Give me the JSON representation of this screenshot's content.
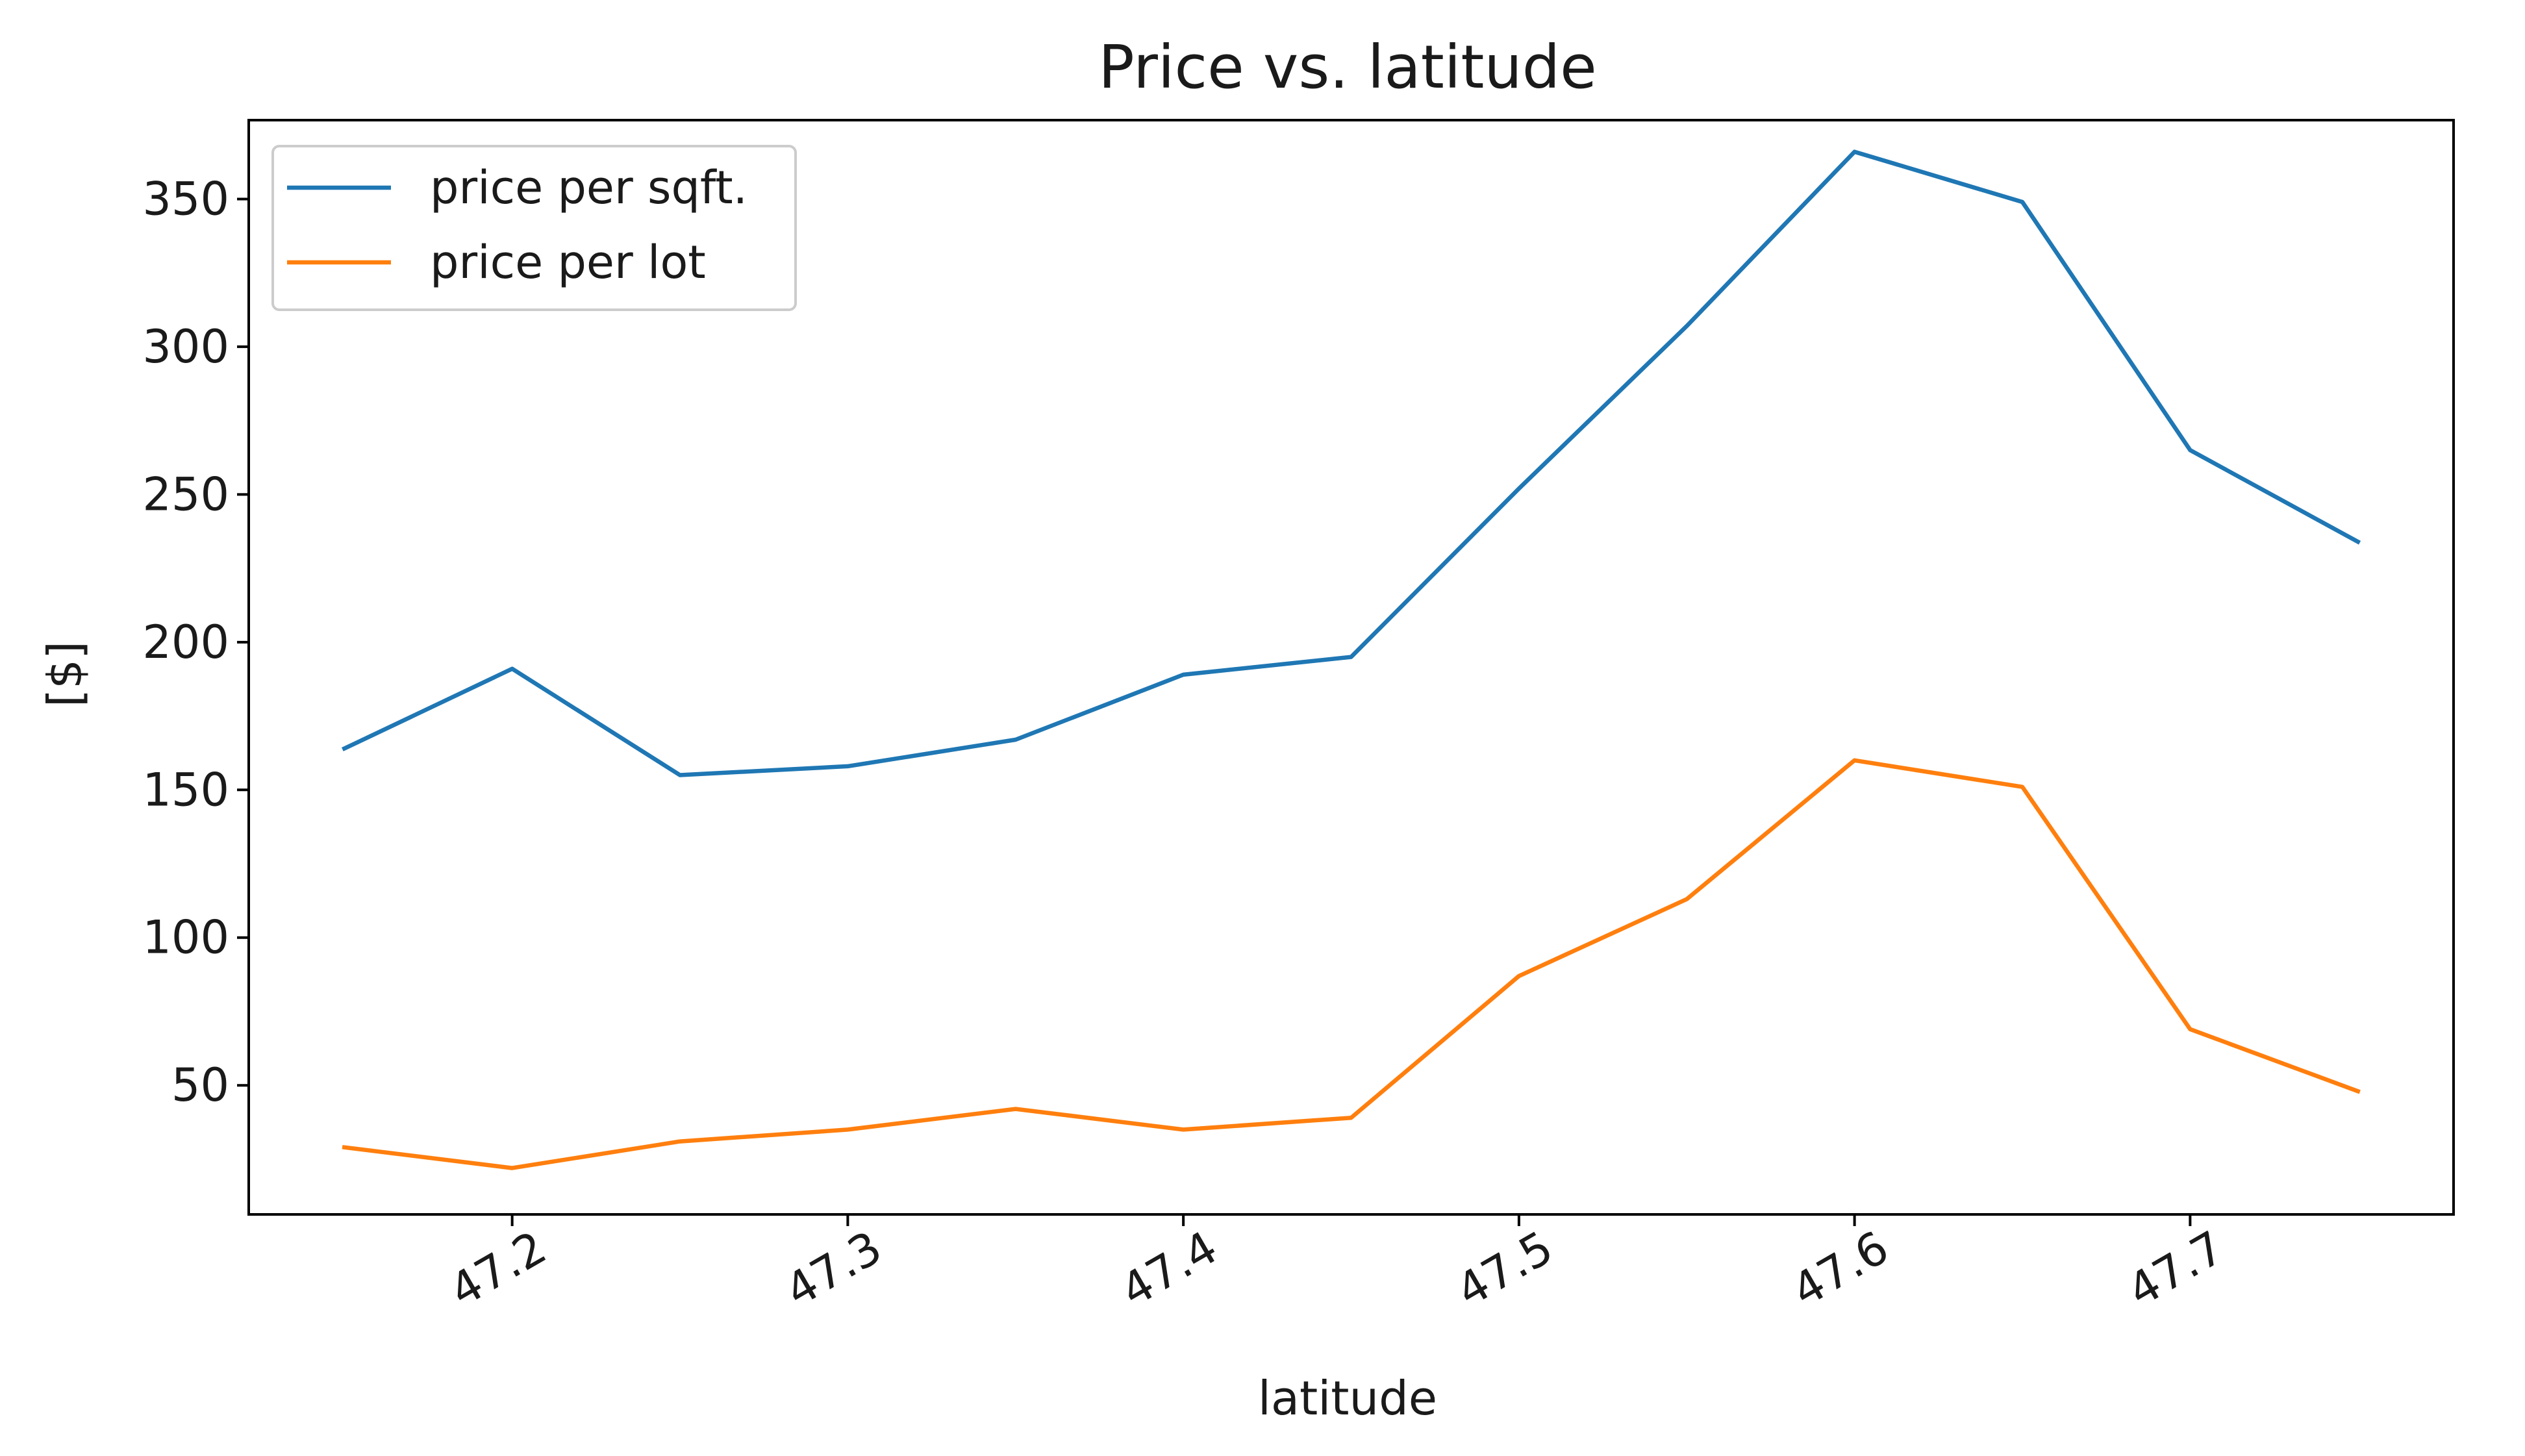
{
  "chart_data": {
    "type": "line",
    "title": "Price vs. latitude",
    "xlabel": "latitude",
    "ylabel": "[$]",
    "x": [
      47.15,
      47.2,
      47.25,
      47.3,
      47.35,
      47.4,
      47.45,
      47.5,
      47.55,
      47.6,
      47.65,
      47.7,
      47.75
    ],
    "xlim": [
      47.1215,
      47.7785
    ],
    "ylim": [
      6.3,
      376.7
    ],
    "xticks": [
      "47.2",
      "47.3",
      "47.4",
      "47.5",
      "47.6",
      "47.7"
    ],
    "yticks": [
      "50",
      "100",
      "150",
      "200",
      "250",
      "300",
      "350"
    ],
    "xtick_rotation": -30,
    "grid": false,
    "legend_position": "upper left",
    "series": [
      {
        "name": "price per sqft.",
        "color": "#1f77b4",
        "values": [
          164,
          191,
          155,
          158,
          167,
          189,
          195,
          252,
          307,
          366,
          349,
          265,
          234
        ]
      },
      {
        "name": "price per lot",
        "color": "#ff7f0e",
        "values": [
          29,
          22,
          31,
          35,
          42,
          35,
          39,
          87,
          113,
          160,
          151,
          69,
          48
        ]
      }
    ]
  }
}
